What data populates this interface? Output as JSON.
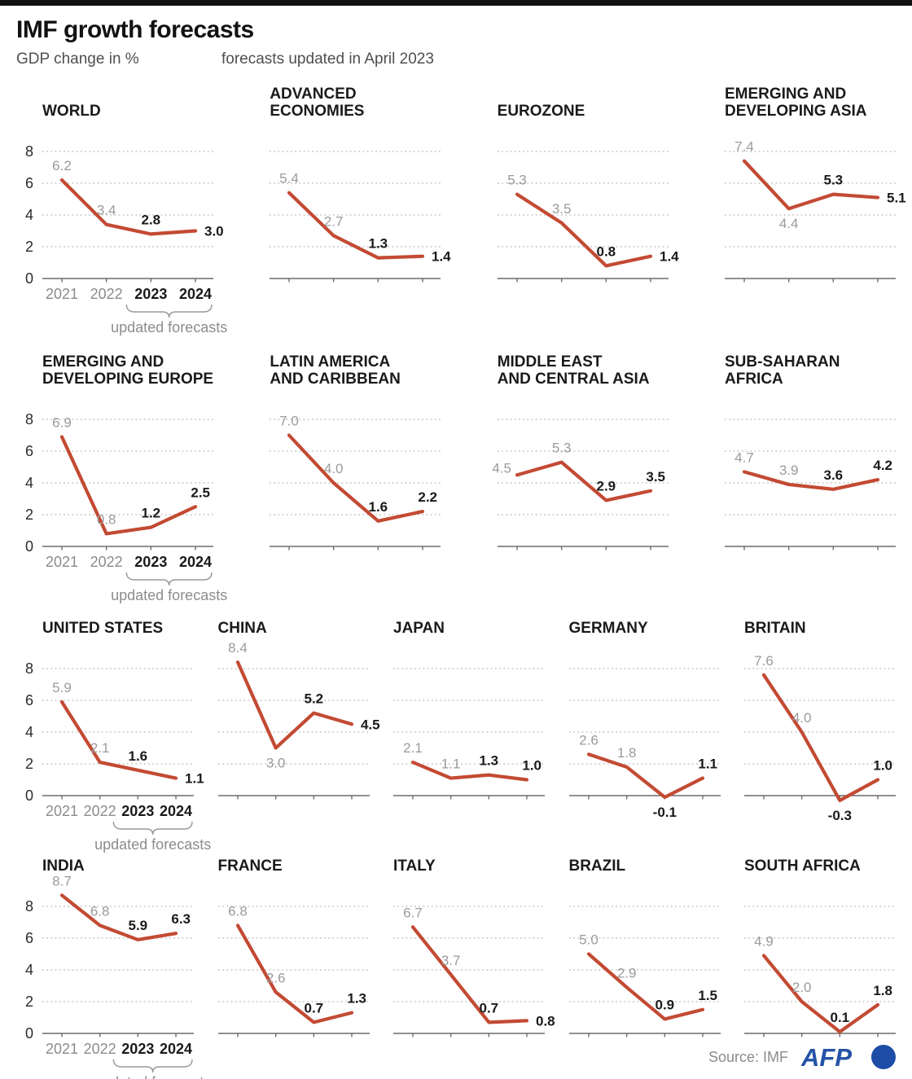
{
  "header": {
    "title": "IMF growth forecasts",
    "subtitle_left": "GDP change in %",
    "subtitle_right": "forecasts updated in April 2023"
  },
  "footer": {
    "source": "Source: IMF",
    "logo_text": "AFP"
  },
  "colors": {
    "line": "#c34a33",
    "grid": "#b9b9b9",
    "axis": "#6b6b6b",
    "gray_label": "#9b9b9b",
    "dark_label": "#1a1a1a",
    "year_gray": "#8c8c8c",
    "caption_gray": "#8c8c8c",
    "ytick": "#2b2b2b",
    "afp_blue": "#2453a6",
    "afp_circle": "#1d4da6",
    "topbar": "#111111"
  },
  "chart_data": {
    "type": "line",
    "x_categories": [
      "2021",
      "2022",
      "2023",
      "2024"
    ],
    "updated_years": [
      "2023",
      "2024"
    ],
    "updated_caption": "updated forecasts",
    "ylim": [
      0,
      8
    ],
    "yticks": [
      8,
      6,
      4,
      2,
      0
    ],
    "grid": "dotted-horizontal",
    "legend": "none",
    "charts": [
      {
        "row": 1,
        "first_in_row": true,
        "title_lines": [
          "WORLD"
        ],
        "values": [
          6.2,
          3.4,
          2.8,
          3.0
        ],
        "labels": [
          "6.2",
          "3.4",
          "2.8",
          "3.0"
        ],
        "label_pos": [
          "a",
          "a",
          "a",
          "r"
        ]
      },
      {
        "row": 1,
        "first_in_row": false,
        "title_lines": [
          "ADVANCED",
          "ECONOMIES"
        ],
        "values": [
          5.4,
          2.7,
          1.3,
          1.4
        ],
        "labels": [
          "5.4",
          "2.7",
          "1.3",
          "1.4"
        ],
        "label_pos": [
          "a",
          "a",
          "a",
          "r"
        ]
      },
      {
        "row": 1,
        "first_in_row": false,
        "title_lines": [
          "EUROZONE"
        ],
        "values": [
          5.3,
          3.5,
          0.8,
          1.4
        ],
        "labels": [
          "5.3",
          "3.5",
          "0.8",
          "1.4"
        ],
        "label_pos": [
          "a",
          "a",
          "a",
          "r"
        ]
      },
      {
        "row": 1,
        "first_in_row": false,
        "title_lines": [
          "EMERGING AND",
          "DEVELOPING ASIA"
        ],
        "values": [
          7.4,
          4.4,
          5.3,
          5.1
        ],
        "labels": [
          "7.4",
          "4.4",
          "5.3",
          "5.1"
        ],
        "label_pos": [
          "a",
          "b",
          "a",
          "r"
        ]
      },
      {
        "row": 2,
        "first_in_row": true,
        "title_lines": [
          "EMERGING AND",
          "DEVELOPING EUROPE"
        ],
        "values": [
          6.9,
          0.8,
          1.2,
          2.5
        ],
        "labels": [
          "6.9",
          "0.8",
          "1.2",
          "2.5"
        ],
        "label_pos": [
          "a",
          "a",
          "a",
          "ar"
        ]
      },
      {
        "row": 2,
        "first_in_row": false,
        "title_lines": [
          "LATIN AMERICA",
          "AND CARIBBEAN"
        ],
        "values": [
          7.0,
          4.0,
          1.6,
          2.2
        ],
        "labels": [
          "7.0",
          "4.0",
          "1.6",
          "2.2"
        ],
        "label_pos": [
          "a",
          "a",
          "a",
          "ar"
        ]
      },
      {
        "row": 2,
        "first_in_row": false,
        "title_lines": [
          "MIDDLE EAST",
          "AND CENTRAL ASIA"
        ],
        "values": [
          4.5,
          5.3,
          2.9,
          3.5
        ],
        "labels": [
          "4.5",
          "5.3",
          "2.9",
          "3.5"
        ],
        "label_pos": [
          "l",
          "a",
          "a",
          "ar"
        ]
      },
      {
        "row": 2,
        "first_in_row": false,
        "title_lines": [
          "SUB-SAHARAN",
          "AFRICA"
        ],
        "values": [
          4.7,
          3.9,
          3.6,
          4.2
        ],
        "labels": [
          "4.7",
          "3.9",
          "3.6",
          "4.2"
        ],
        "label_pos": [
          "a",
          "a",
          "a",
          "ar"
        ]
      },
      {
        "row": 3,
        "first_in_row": true,
        "title_lines": [
          "UNITED STATES"
        ],
        "values": [
          5.9,
          2.1,
          1.6,
          1.1
        ],
        "labels": [
          "5.9",
          "2.1",
          "1.6",
          "1.1"
        ],
        "label_pos": [
          "a",
          "a",
          "a",
          "r"
        ]
      },
      {
        "row": 3,
        "first_in_row": false,
        "title_lines": [
          "CHINA"
        ],
        "values": [
          8.4,
          3.0,
          5.2,
          4.5
        ],
        "labels": [
          "8.4",
          "3.0",
          "5.2",
          "4.5"
        ],
        "label_pos": [
          "a",
          "b",
          "a",
          "r"
        ]
      },
      {
        "row": 3,
        "first_in_row": false,
        "title_lines": [
          "JAPAN"
        ],
        "values": [
          2.1,
          1.1,
          1.3,
          1.0
        ],
        "labels": [
          "2.1",
          "1.1",
          "1.3",
          "1.0"
        ],
        "label_pos": [
          "a",
          "a",
          "a",
          "ar"
        ]
      },
      {
        "row": 3,
        "first_in_row": false,
        "title_lines": [
          "GERMANY"
        ],
        "values": [
          2.6,
          1.8,
          -0.1,
          1.1
        ],
        "labels": [
          "2.6",
          "1.8",
          "-0.1",
          "1.1"
        ],
        "label_pos": [
          "a",
          "a",
          "b",
          "ar"
        ]
      },
      {
        "row": 3,
        "first_in_row": false,
        "title_lines": [
          "BRITAIN"
        ],
        "values": [
          7.6,
          4.0,
          -0.3,
          1.0
        ],
        "labels": [
          "7.6",
          "4.0",
          "-0.3",
          "1.0"
        ],
        "label_pos": [
          "a",
          "a",
          "b",
          "ar"
        ]
      },
      {
        "row": 4,
        "first_in_row": true,
        "title_lines": [
          "INDIA"
        ],
        "values": [
          8.7,
          6.8,
          5.9,
          6.3
        ],
        "labels": [
          "8.7",
          "6.8",
          "5.9",
          "6.3"
        ],
        "label_pos": [
          "a",
          "a",
          "a",
          "ar"
        ]
      },
      {
        "row": 4,
        "first_in_row": false,
        "title_lines": [
          "FRANCE"
        ],
        "values": [
          6.8,
          2.6,
          0.7,
          1.3
        ],
        "labels": [
          "6.8",
          "2.6",
          "0.7",
          "1.3"
        ],
        "label_pos": [
          "a",
          "a",
          "a",
          "ar"
        ]
      },
      {
        "row": 4,
        "first_in_row": false,
        "title_lines": [
          "ITALY"
        ],
        "values": [
          6.7,
          3.7,
          0.7,
          0.8
        ],
        "labels": [
          "6.7",
          "3.7",
          "0.7",
          "0.8"
        ],
        "label_pos": [
          "a",
          "a",
          "a",
          "r"
        ]
      },
      {
        "row": 4,
        "first_in_row": false,
        "title_lines": [
          "BRAZIL"
        ],
        "values": [
          5.0,
          2.9,
          0.9,
          1.5
        ],
        "labels": [
          "5.0",
          "2.9",
          "0.9",
          "1.5"
        ],
        "label_pos": [
          "a",
          "a",
          "a",
          "ar"
        ]
      },
      {
        "row": 4,
        "first_in_row": false,
        "title_lines": [
          "SOUTH AFRICA"
        ],
        "values": [
          4.9,
          2.0,
          0.1,
          1.8
        ],
        "labels": [
          "4.9",
          "2.0",
          "0.1",
          "1.8"
        ],
        "label_pos": [
          "a",
          "a",
          "a",
          "ar"
        ]
      }
    ]
  }
}
